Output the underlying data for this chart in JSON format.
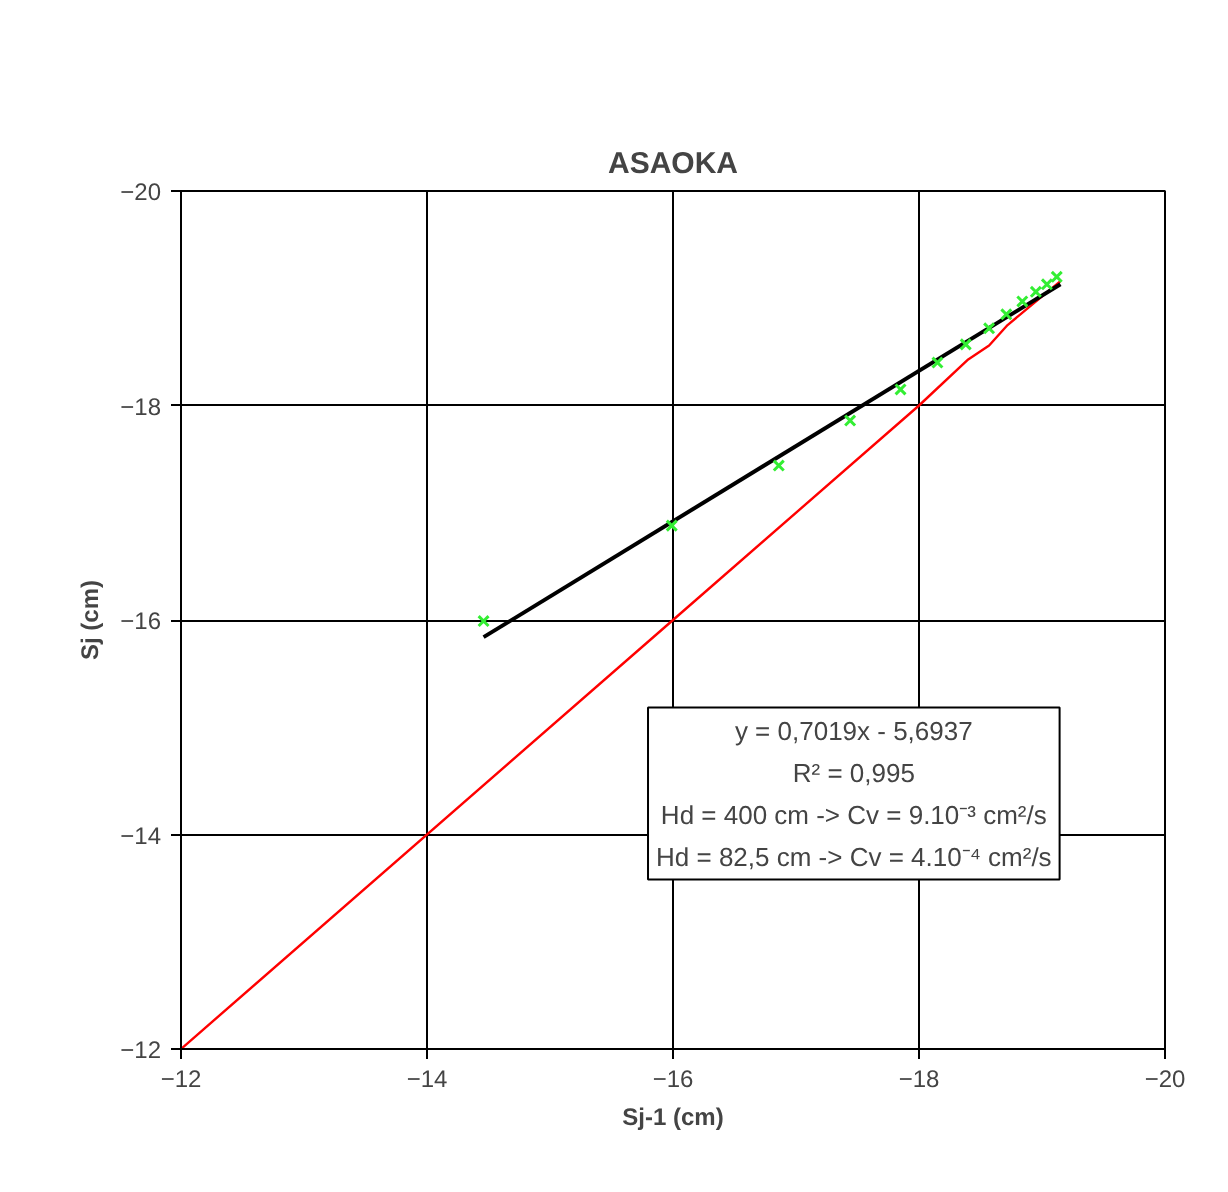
{
  "chart_data": {
    "type": "scatter",
    "title": "ASAOKA",
    "xlabel": "Sj-1 (cm)",
    "ylabel": "Sj (cm)",
    "xlim": [
      -12,
      -20
    ],
    "ylim": [
      -12,
      -20
    ],
    "xticks": [
      -12,
      -14,
      -16,
      -18,
      -20
    ],
    "yticks": [
      -12,
      -14,
      -16,
      -18,
      -20
    ],
    "grid": true,
    "marker": "cross",
    "series": [
      {
        "type": "line",
        "marker": "none",
        "color": "#ff0000",
        "x": [
          -12,
          -16,
          -18,
          -18.4,
          -18.57,
          -18.72,
          -19.15
        ],
        "values": [
          -12,
          -16,
          -18,
          -18.43,
          -18.56,
          -18.75,
          -19.16
        ]
      },
      {
        "type": "line",
        "marker": "none",
        "color": "#000000",
        "x": [
          -14.46,
          -19.15
        ],
        "values": [
          -15.84,
          -19.13
        ]
      },
      {
        "color": "#33ee33",
        "x": [
          -14.46,
          -15.99,
          -16.86,
          -17.44,
          -17.85,
          -18.15,
          -18.38,
          -18.57,
          -18.71,
          -18.84,
          -18.95,
          -19.04,
          -19.12
        ],
        "values": [
          -15.99,
          -16.88,
          -17.44,
          -17.86,
          -18.15,
          -18.4,
          -18.57,
          -18.72,
          -18.85,
          -18.97,
          -19.06,
          -19.13,
          -19.2
        ]
      }
    ],
    "annotations": [
      "y = 0,7019x - 5,6937",
      "R² = 0,995",
      "Hd = 400 cm -> Cv = 9.10⁻³ cm²/s",
      "Hd = 82,5 cm -> Cv = 4.10⁻⁴ cm²/s"
    ]
  }
}
